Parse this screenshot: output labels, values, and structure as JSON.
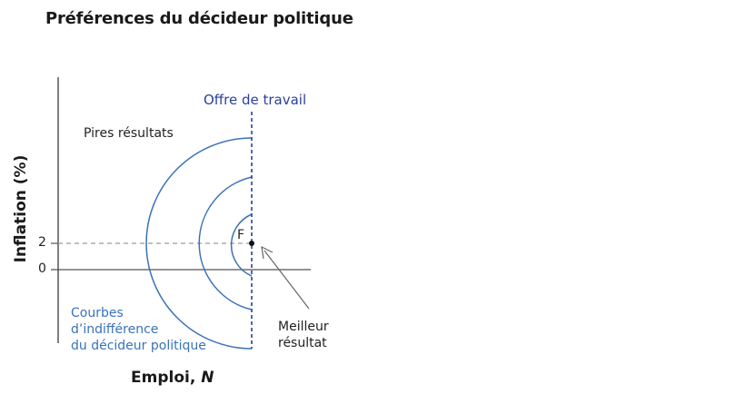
{
  "title": "Préférences du décideur politique",
  "axes": {
    "ylabel": "Inflation (%)",
    "xlabel_text": "Emploi, ",
    "xlabel_var": "N",
    "yticks": [
      "2",
      "0"
    ]
  },
  "labels": {
    "labour_supply": "Offre de travail",
    "worse_outcomes": "Pires résultats",
    "point_f": "F",
    "best_line1": "Meilleur",
    "best_line2": "résultat",
    "curves_line1": "Courbes",
    "curves_line2": "d’indifférence",
    "curves_line3": "du décideur politique"
  },
  "colors": {
    "curve": "#3a72b8",
    "labour_supply_line": "#2b3f9e",
    "guide": "#9a9a9a",
    "axis": "#555555"
  }
}
